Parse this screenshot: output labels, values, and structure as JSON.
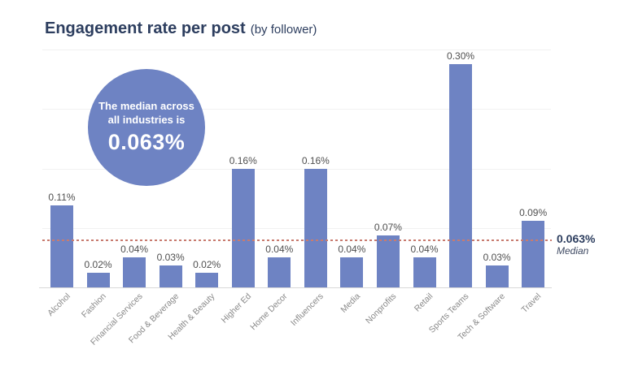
{
  "title": {
    "main": "Engagement rate per post",
    "sub": "(by follower)"
  },
  "callout_circle": {
    "line1": "The median across",
    "line2": "all industries is",
    "value": "0.063%"
  },
  "median_annotation": {
    "value": "0.063%",
    "caption": "Median"
  },
  "colors": {
    "bar": "#6e83c3",
    "circle": "#6e83c3",
    "title": "#2d3e5f",
    "median_line": "#c87b6f",
    "value_label": "#4f4f4f",
    "category_label": "#8a8a8a",
    "axis_line": "#d9d9d9",
    "gridline": "#f1f1f1"
  },
  "chart_data": {
    "type": "bar",
    "title": "Engagement rate per post (by follower)",
    "categories": [
      "Alcohol",
      "Fashion",
      "Financial Services",
      "Food & Beverage",
      "Health & Beauty",
      "Higher Ed",
      "Home Decor",
      "Influencers",
      "Media",
      "Nonprofits",
      "Retail",
      "Sports Teams",
      "Tech & Software",
      "Travel"
    ],
    "values": [
      0.11,
      0.02,
      0.04,
      0.03,
      0.02,
      0.16,
      0.04,
      0.16,
      0.04,
      0.07,
      0.04,
      0.3,
      0.03,
      0.09
    ],
    "value_labels": [
      "0.11%",
      "0.02%",
      "0.04%",
      "0.03%",
      "0.02%",
      "0.16%",
      "0.04%",
      "0.16%",
      "0.04%",
      "0.07%",
      "0.04%",
      "0.30%",
      "0.03%",
      "0.09%"
    ],
    "unit": "percent of followers",
    "ylim": [
      0,
      0.32
    ],
    "ygrid": [
      0.08,
      0.16,
      0.24,
      0.32
    ],
    "grid": "faint-horizontal",
    "legend": false,
    "median": 0.063,
    "median_label": "0.063% Median",
    "annotation": "The median across all industries is 0.063%"
  }
}
